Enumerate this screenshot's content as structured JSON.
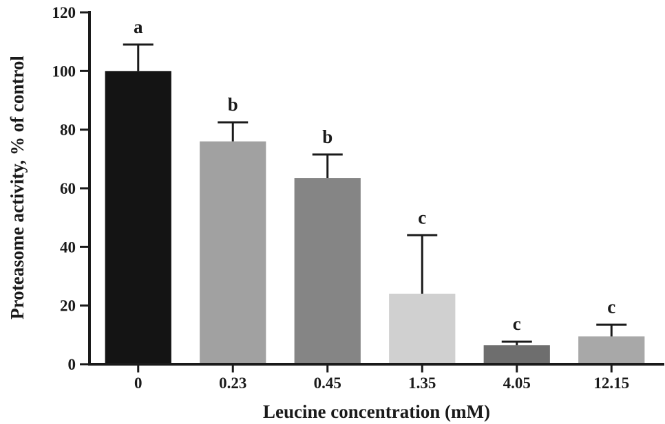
{
  "chart_data": {
    "type": "bar",
    "title": "",
    "xlabel": "Leucine concentration (mM)",
    "ylabel": "Proteasome activity, % of control",
    "ylim": [
      0,
      120
    ],
    "yticks": [
      0,
      20,
      40,
      60,
      80,
      100,
      120
    ],
    "grid": false,
    "legend": "none",
    "categories": [
      "0",
      "0.23",
      "0.45",
      "1.35",
      "4.05",
      "12.15"
    ],
    "values": [
      100,
      76,
      63.5,
      24,
      6.5,
      9.5
    ],
    "error_upper": [
      9,
      6.5,
      8,
      20,
      1.2,
      4
    ],
    "significance_labels": [
      "a",
      "b",
      "b",
      "c",
      "c",
      "c"
    ],
    "colors": [
      "#141414",
      "#a1a1a1",
      "#858585",
      "#d0d0d0",
      "#6e6e6e",
      "#a8a8a8"
    ]
  }
}
